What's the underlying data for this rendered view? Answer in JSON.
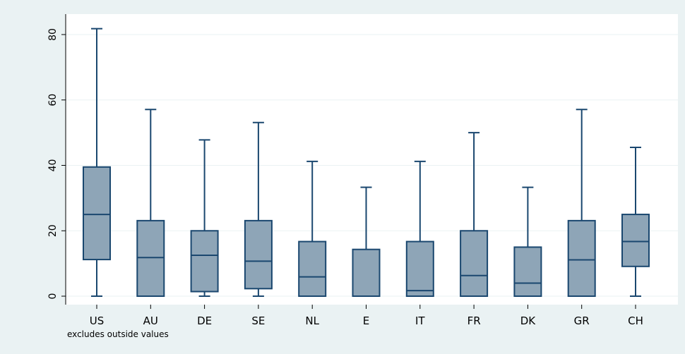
{
  "chart_data": {
    "type": "box",
    "categories": [
      "US",
      "AU",
      "DE",
      "SE",
      "NL",
      "E",
      "IT",
      "FR",
      "DK",
      "GR",
      "CH"
    ],
    "boxes": [
      {
        "category": "US",
        "min": 0,
        "q1": 11.2,
        "median": 25.0,
        "q3": 39.5,
        "max": 81.8
      },
      {
        "category": "AU",
        "min": 0,
        "q1": 0,
        "median": 11.8,
        "q3": 23.1,
        "max": 57.1
      },
      {
        "category": "DE",
        "min": 0,
        "q1": 1.4,
        "median": 12.5,
        "q3": 20.0,
        "max": 47.8
      },
      {
        "category": "SE",
        "min": 0,
        "q1": 2.3,
        "median": 10.7,
        "q3": 23.1,
        "max": 53.1
      },
      {
        "category": "NL",
        "min": 0,
        "q1": 0,
        "median": 5.9,
        "q3": 16.7,
        "max": 41.2
      },
      {
        "category": "E",
        "min": 0,
        "q1": 0,
        "median": 0,
        "q3": 14.3,
        "max": 33.3
      },
      {
        "category": "IT",
        "min": 0,
        "q1": 0,
        "median": 1.7,
        "q3": 16.7,
        "max": 41.2
      },
      {
        "category": "FR",
        "min": 0,
        "q1": 0,
        "median": 6.3,
        "q3": 20.0,
        "max": 50.0
      },
      {
        "category": "DK",
        "min": 0,
        "q1": 0,
        "median": 4.0,
        "q3": 15.0,
        "max": 33.3
      },
      {
        "category": "GR",
        "min": 0,
        "q1": 0,
        "median": 11.1,
        "q3": 23.1,
        "max": 57.1
      },
      {
        "category": "CH",
        "min": 0,
        "q1": 9.1,
        "median": 16.7,
        "q3": 25.0,
        "max": 45.5
      }
    ],
    "yticks": [
      0,
      20,
      40,
      60,
      80
    ],
    "ylim": [
      -2,
      86
    ],
    "note": "excludes outside values",
    "grid": true,
    "colors": {
      "box_fill": "#8ea5b7",
      "box_stroke": "#1a476f",
      "plot_bg": "#ffffff",
      "outer_bg": "#eaf2f3",
      "grid": "#eaf2f3"
    }
  }
}
